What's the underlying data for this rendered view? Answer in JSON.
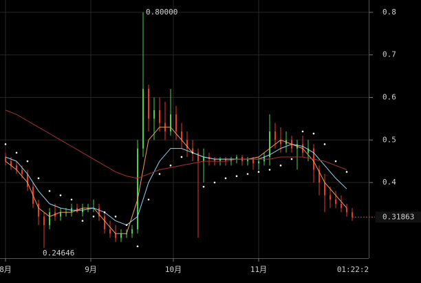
{
  "chart_data": {
    "type": "candlestick",
    "x": [
      0,
      2,
      4,
      6,
      8,
      10,
      12,
      14,
      16,
      18,
      20,
      22,
      24,
      26,
      28,
      30,
      32,
      34,
      36,
      38,
      40,
      42,
      44,
      46,
      48,
      50,
      52,
      54,
      56,
      58,
      60,
      62,
      64,
      66,
      68,
      70,
      72,
      74,
      76,
      78,
      80,
      82,
      84,
      86,
      88,
      90,
      92,
      94,
      96,
      98,
      100,
      102,
      104,
      106,
      108,
      110,
      112,
      114,
      116,
      118,
      120,
      122,
      124,
      126
    ],
    "open": [
      0.46,
      0.45,
      0.44,
      0.43,
      0.42,
      0.39,
      0.35,
      0.32,
      0.3,
      0.33,
      0.32,
      0.33,
      0.33,
      0.34,
      0.33,
      0.34,
      0.34,
      0.34,
      0.32,
      0.29,
      0.28,
      0.27,
      0.28,
      0.28,
      0.29,
      0.48,
      0.62,
      0.55,
      0.57,
      0.54,
      0.52,
      0.56,
      0.52,
      0.5,
      0.48,
      0.47,
      0.45,
      0.46,
      0.455,
      0.45,
      0.455,
      0.45,
      0.455,
      0.46,
      0.45,
      0.455,
      0.445,
      0.45,
      0.46,
      0.52,
      0.5,
      0.49,
      0.5,
      0.48,
      0.49,
      0.47,
      0.48,
      0.43,
      0.4,
      0.37,
      0.36,
      0.35,
      0.34,
      0.33
    ],
    "high": [
      0.47,
      0.46,
      0.45,
      0.44,
      0.43,
      0.4,
      0.36,
      0.33,
      0.34,
      0.35,
      0.34,
      0.34,
      0.35,
      0.35,
      0.35,
      0.35,
      0.36,
      0.35,
      0.33,
      0.31,
      0.3,
      0.29,
      0.29,
      0.3,
      0.5,
      0.8,
      0.63,
      0.6,
      0.6,
      0.59,
      0.62,
      0.58,
      0.54,
      0.52,
      0.5,
      0.48,
      0.48,
      0.47,
      0.46,
      0.46,
      0.46,
      0.46,
      0.465,
      0.465,
      0.46,
      0.46,
      0.46,
      0.47,
      0.56,
      0.54,
      0.53,
      0.52,
      0.51,
      0.5,
      0.51,
      0.5,
      0.49,
      0.44,
      0.42,
      0.39,
      0.38,
      0.37,
      0.35,
      0.34
    ],
    "low": [
      0.44,
      0.43,
      0.42,
      0.41,
      0.38,
      0.34,
      0.3,
      0.24646,
      0.29,
      0.31,
      0.31,
      0.32,
      0.32,
      0.33,
      0.32,
      0.33,
      0.33,
      0.31,
      0.28,
      0.27,
      0.26,
      0.26,
      0.27,
      0.27,
      0.28,
      0.46,
      0.52,
      0.5,
      0.52,
      0.5,
      0.51,
      0.5,
      0.48,
      0.46,
      0.45,
      0.27,
      0.4,
      0.44,
      0.44,
      0.44,
      0.44,
      0.44,
      0.445,
      0.44,
      0.44,
      0.43,
      0.43,
      0.44,
      0.44,
      0.48,
      0.47,
      0.47,
      0.47,
      0.43,
      0.46,
      0.45,
      0.4,
      0.37,
      0.33,
      0.34,
      0.34,
      0.33,
      0.32,
      0.31
    ],
    "close": [
      0.45,
      0.44,
      0.43,
      0.42,
      0.39,
      0.35,
      0.32,
      0.3,
      0.33,
      0.32,
      0.33,
      0.33,
      0.34,
      0.33,
      0.34,
      0.34,
      0.34,
      0.32,
      0.29,
      0.28,
      0.27,
      0.28,
      0.28,
      0.29,
      0.48,
      0.62,
      0.55,
      0.57,
      0.54,
      0.52,
      0.56,
      0.52,
      0.5,
      0.48,
      0.47,
      0.45,
      0.46,
      0.455,
      0.45,
      0.455,
      0.45,
      0.455,
      0.46,
      0.45,
      0.455,
      0.445,
      0.45,
      0.46,
      0.52,
      0.5,
      0.49,
      0.5,
      0.48,
      0.49,
      0.47,
      0.48,
      0.43,
      0.4,
      0.37,
      0.36,
      0.35,
      0.34,
      0.33,
      0.31863
    ],
    "up_color": "#4fcf4f",
    "down_color": "#e8392f",
    "line_x": [
      0,
      4,
      8,
      12,
      16,
      20,
      24,
      28,
      32,
      36,
      40,
      44,
      48,
      52,
      56,
      60,
      64,
      68,
      72,
      76,
      80,
      84,
      88,
      92,
      96,
      100,
      104,
      108,
      112,
      116,
      120,
      124
    ],
    "lines": [
      {
        "color": "#f0a050",
        "style": "solid",
        "values": [
          0.45,
          0.43,
          0.4,
          0.34,
          0.32,
          0.33,
          0.33,
          0.34,
          0.34,
          0.31,
          0.28,
          0.28,
          0.36,
          0.5,
          0.53,
          0.53,
          0.5,
          0.47,
          0.46,
          0.455,
          0.455,
          0.455,
          0.455,
          0.46,
          0.48,
          0.5,
          0.49,
          0.48,
          0.45,
          0.4,
          0.37,
          0.34
        ]
      },
      {
        "color": "#8fd8f0",
        "style": "solid",
        "values": [
          0.46,
          0.45,
          0.42,
          0.38,
          0.35,
          0.34,
          0.335,
          0.335,
          0.34,
          0.33,
          0.31,
          0.3,
          0.32,
          0.4,
          0.45,
          0.48,
          0.48,
          0.47,
          0.46,
          0.455,
          0.455,
          0.455,
          0.455,
          0.455,
          0.465,
          0.48,
          0.49,
          0.485,
          0.47,
          0.44,
          0.41,
          0.385
        ]
      },
      {
        "color": "#a8323a",
        "style": "solid",
        "values": [
          0.57,
          0.56,
          0.545,
          0.53,
          0.515,
          0.5,
          0.485,
          0.47,
          0.455,
          0.44,
          0.425,
          0.415,
          0.41,
          0.42,
          0.43,
          0.435,
          0.44,
          0.445,
          0.45,
          0.45,
          0.45,
          0.455,
          0.455,
          0.455,
          0.455,
          0.46,
          0.46,
          0.46,
          0.455,
          0.45,
          0.44,
          0.43
        ]
      },
      {
        "color": "#ffffff",
        "style": "dots",
        "values": [
          0.49,
          0.47,
          0.45,
          0.41,
          0.38,
          0.37,
          0.36,
          0.31,
          0.32,
          0.33,
          0.32,
          0.3,
          0.25,
          0.36,
          0.42,
          0.44,
          0.46,
          0.47,
          0.39,
          0.4,
          0.41,
          0.415,
          0.42,
          0.425,
          0.43,
          0.44,
          0.455,
          0.52,
          0.515,
          0.49,
          0.45,
          0.425
        ]
      }
    ],
    "xlim": [
      -2,
      131.75
    ],
    "ylim": [
      0.222,
      0.829
    ],
    "yticks": [
      0.4,
      0.5,
      0.6,
      0.7,
      0.8
    ],
    "xticks": [
      {
        "value": 0,
        "label": "8月"
      },
      {
        "value": 31,
        "label": "9月"
      },
      {
        "value": 61,
        "label": "10月"
      },
      {
        "value": 92,
        "label": "11月"
      }
    ],
    "max_label": "0.80000",
    "countdown": "01:22:2",
    "grid": true
  }
}
